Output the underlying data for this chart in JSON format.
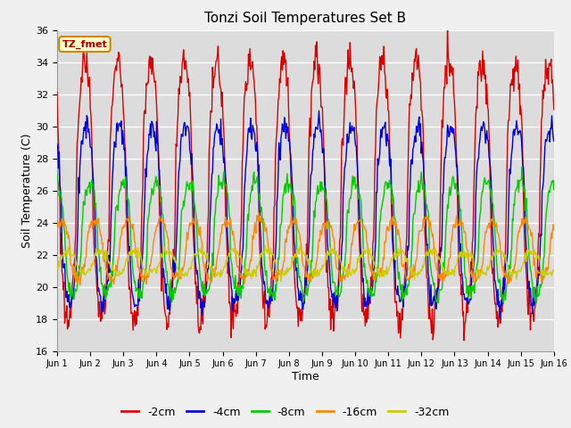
{
  "title": "Tonzi Soil Temperatures Set B",
  "xlabel": "Time",
  "ylabel": "Soil Temperature (C)",
  "ylim": [
    16,
    36
  ],
  "xlim": [
    0,
    15
  ],
  "label_box": "TZ_fmet",
  "bg_color": "#dcdcdc",
  "grid_color": "#ffffff",
  "fig_bg": "#f0f0f0",
  "series": [
    {
      "label": "-2cm",
      "color": "#dd0000",
      "amplitude": 8.0,
      "mean": 26.0,
      "phase_lag": 0.0,
      "noise": 0.6
    },
    {
      "label": "-4cm",
      "color": "#0000dd",
      "amplitude": 5.5,
      "mean": 24.5,
      "phase_lag": 0.05,
      "noise": 0.4
    },
    {
      "label": "-8cm",
      "color": "#00cc00",
      "amplitude": 3.5,
      "mean": 23.0,
      "phase_lag": 0.15,
      "noise": 0.3
    },
    {
      "label": "-16cm",
      "color": "#ff8800",
      "amplitude": 1.8,
      "mean": 22.3,
      "phase_lag": 0.3,
      "noise": 0.2
    },
    {
      "label": "-32cm",
      "color": "#cccc00",
      "amplitude": 0.7,
      "mean": 21.5,
      "phase_lag": 0.5,
      "noise": 0.15
    }
  ],
  "xtick_labels": [
    "Jun 1",
    "Jun 2",
    "Jun 3",
    "Jun 4",
    "Jun 5",
    "Jun 6",
    "Jun 7",
    "Jun 8",
    "Jun 9",
    "Jun 10",
    "Jun 11",
    "Jun 12",
    "Jun 13",
    "Jun 14",
    "Jun 15",
    "Jun 16"
  ],
  "xtick_positions": [
    0,
    1,
    2,
    3,
    4,
    5,
    6,
    7,
    8,
    9,
    10,
    11,
    12,
    13,
    14,
    15
  ],
  "yticks": [
    16,
    18,
    20,
    22,
    24,
    26,
    28,
    30,
    32,
    34,
    36
  ]
}
